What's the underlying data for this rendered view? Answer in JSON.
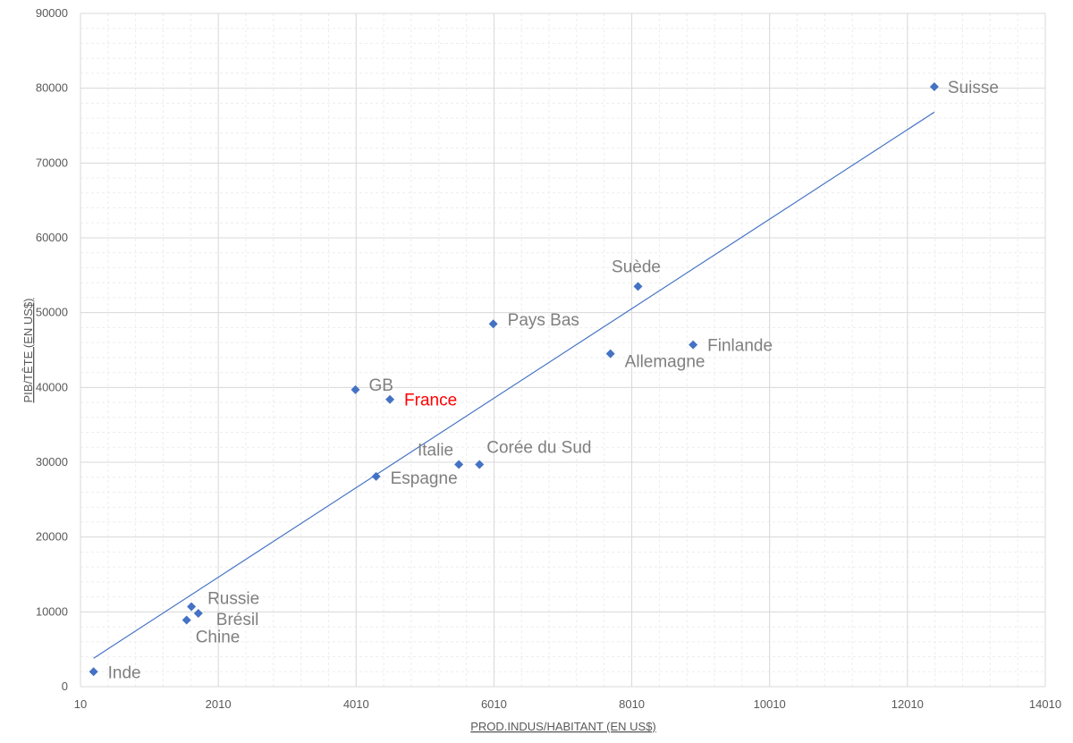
{
  "chart_data": {
    "type": "scatter",
    "xlabel": "PROD.INDUS/HABITANT (EN US$)",
    "ylabel": "PIB/TÊTE (EN US$)",
    "xlim": [
      10,
      14010
    ],
    "ylim": [
      0,
      90000
    ],
    "x_ticks": [
      "10",
      "2010",
      "4010",
      "6010",
      "8010",
      "10010",
      "12010",
      "14010"
    ],
    "y_ticks": [
      "0",
      "10000",
      "20000",
      "30000",
      "40000",
      "50000",
      "60000",
      "70000",
      "80000",
      "90000"
    ],
    "grid": true,
    "marker_color": "#4472C4",
    "trendline_color": "#4472C4",
    "label_color": "#7F7F7F",
    "highlight_color": "#FF0000",
    "points": [
      {
        "label": "Inde",
        "x": 200,
        "y": 2000
      },
      {
        "label": "Chine",
        "x": 1550,
        "y": 8900
      },
      {
        "label": "Russie",
        "x": 1620,
        "y": 10700
      },
      {
        "label": "Brésil",
        "x": 1720,
        "y": 9800
      },
      {
        "label": "GB",
        "x": 4000,
        "y": 39700
      },
      {
        "label": "Espagne",
        "x": 4300,
        "y": 28100
      },
      {
        "label": "France",
        "x": 4500,
        "y": 38400,
        "highlight": true
      },
      {
        "label": "Italie",
        "x": 5500,
        "y": 29700
      },
      {
        "label": "Corée du Sud",
        "x": 5800,
        "y": 29700
      },
      {
        "label": "Pays Bas",
        "x": 6000,
        "y": 48500
      },
      {
        "label": "Allemagne",
        "x": 7700,
        "y": 44500
      },
      {
        "label": "Suède",
        "x": 8100,
        "y": 53500
      },
      {
        "label": "Finlande",
        "x": 8900,
        "y": 45700
      },
      {
        "label": "Suisse",
        "x": 12400,
        "y": 80200
      }
    ],
    "trendline": {
      "x": [
        200,
        12400
      ],
      "y": [
        3800,
        76800
      ]
    }
  }
}
